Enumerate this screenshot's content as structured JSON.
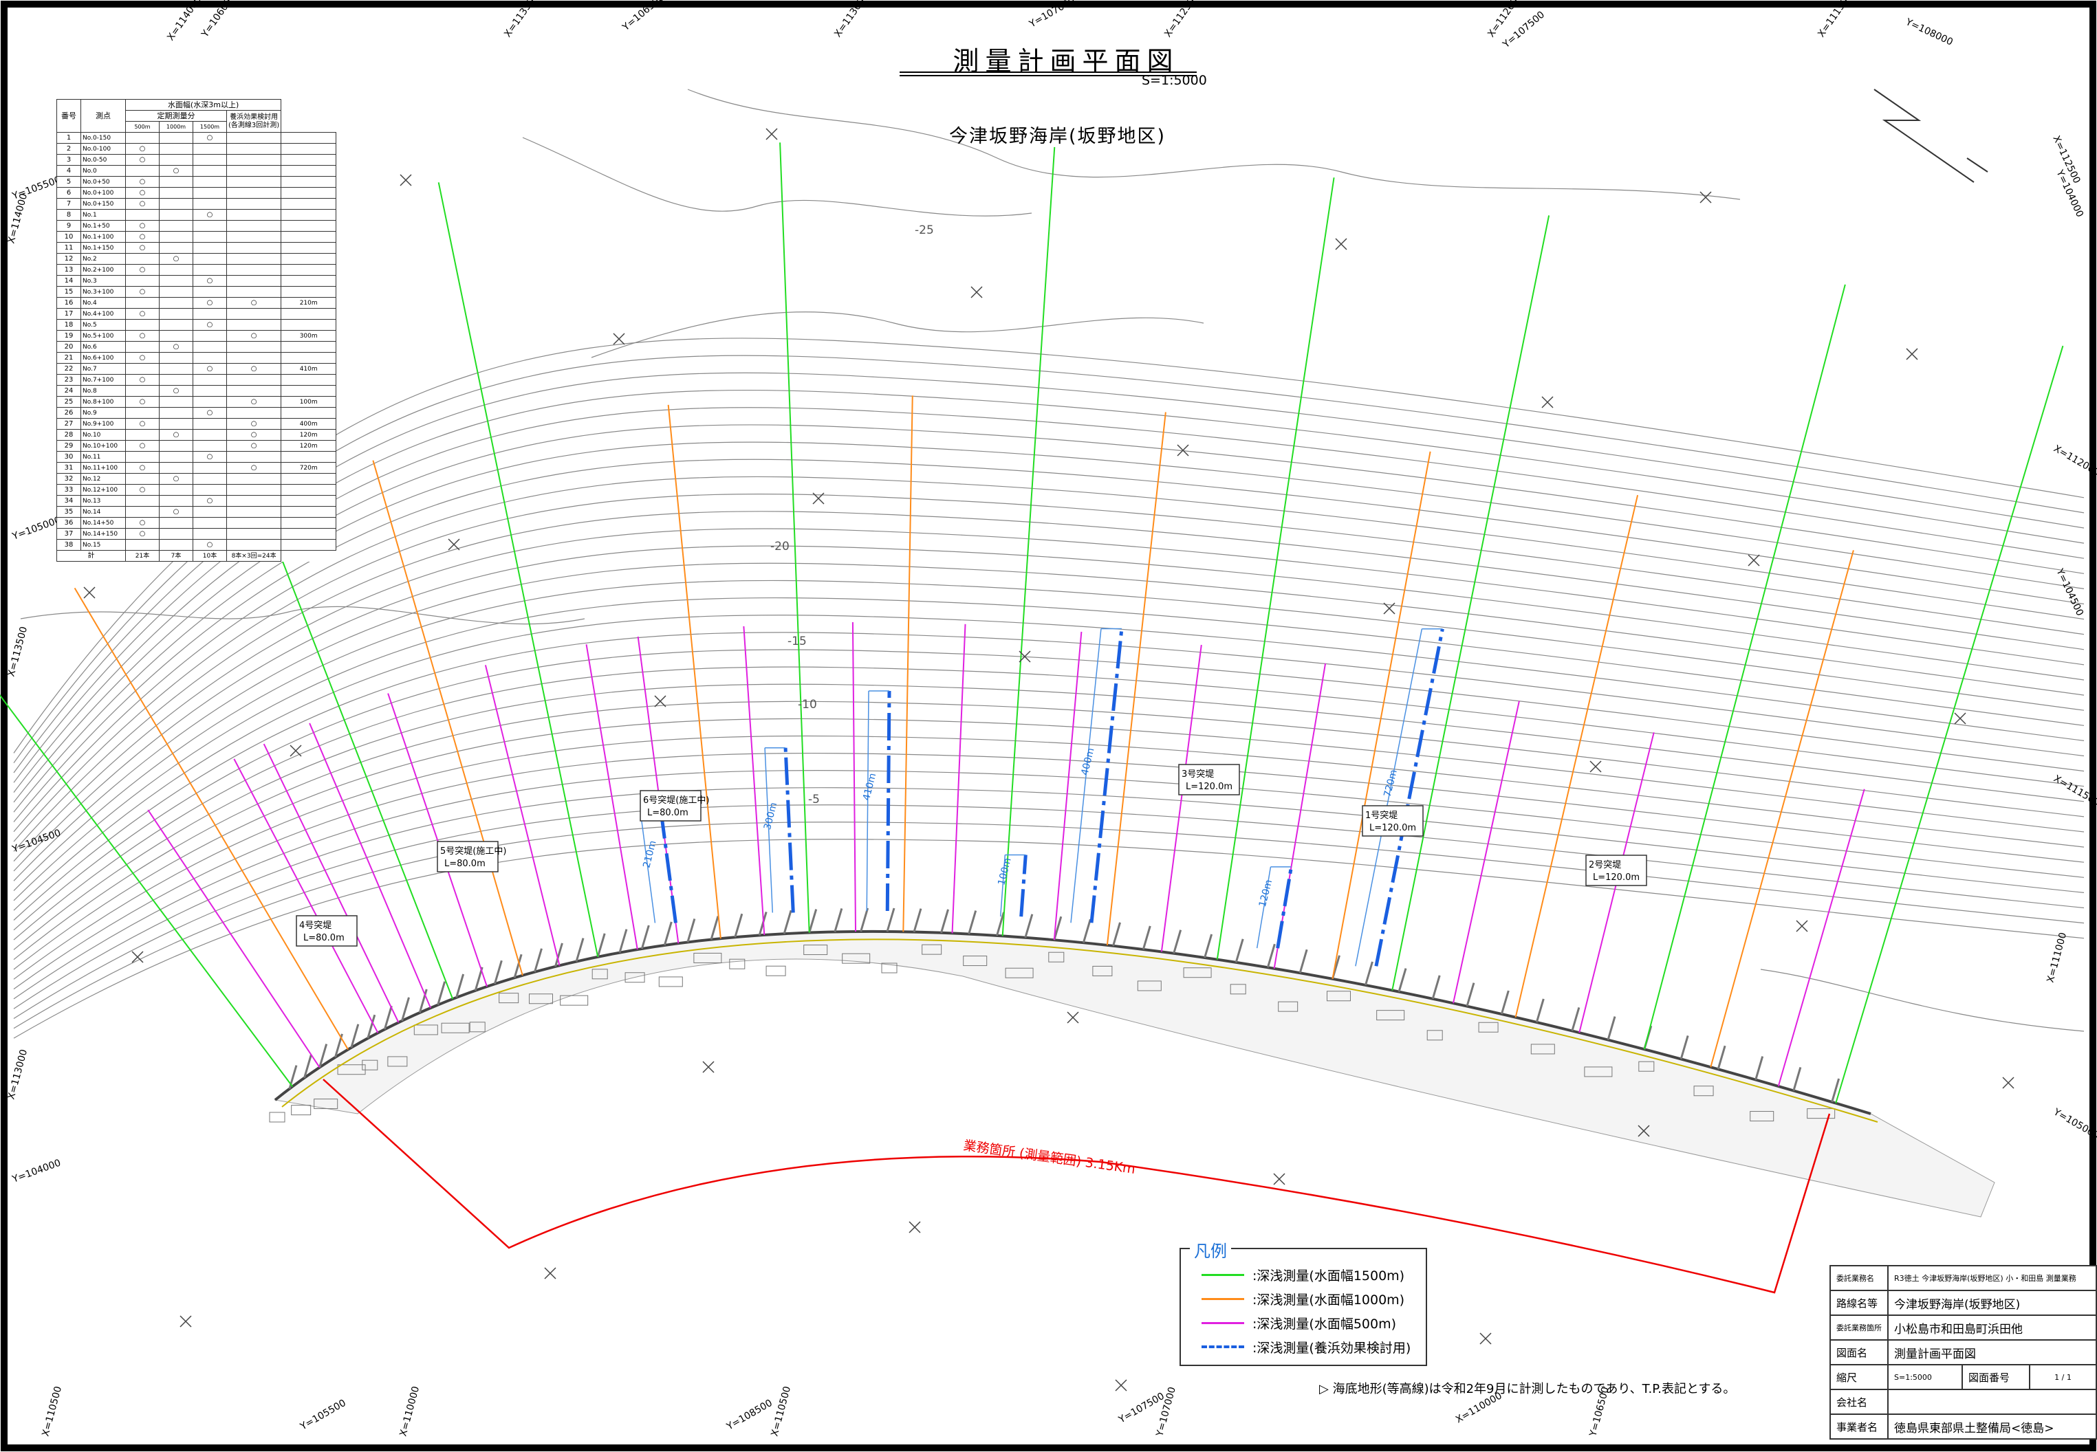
{
  "title": "測量計画平面図",
  "scale_note": "S=1:5000",
  "subtitle": "今津坂野海岸(坂野地区)",
  "grid_labels": [
    "X=114000",
    "Y=106000",
    "X=113500",
    "Y=106500",
    "X=113000",
    "Y=107000",
    "X=112500",
    "X=112000",
    "Y=107500",
    "X=111500",
    "Y=108000",
    "Y=105500",
    "X=114000",
    "Y=105000",
    "X=113500",
    "Y=104500",
    "X=113000",
    "Y=104000",
    "X=112500",
    "Y=104000",
    "X=112000",
    "Y=104500",
    "X=111500",
    "X=111000",
    "Y=105000",
    "X=110500",
    "Y=105500",
    "X=110000",
    "Y=108500",
    "X=110500",
    "Y=107500",
    "Y=107000",
    "X=110000",
    "Y=106500",
    "X=109500"
  ],
  "contour_labels": [
    "-25",
    "-20",
    "-15",
    "-10",
    "-5"
  ],
  "structures": [
    {
      "name": "6号突堤(施工中)",
      "length": "L=80.0m"
    },
    {
      "name": "5号突堤(施工中)",
      "length": "L=80.0m"
    },
    {
      "name": "4号突堤",
      "length": "L=80.0m"
    },
    {
      "name": "3号突堤",
      "length": "L=120.0m"
    },
    {
      "name": "1号突堤",
      "length": "L=120.0m"
    },
    {
      "name": "2号突堤",
      "length": "L=120.0m"
    }
  ],
  "blue_line_labels": [
    "210m",
    "300m",
    "410m",
    "100m",
    "400m",
    "120m",
    "720m"
  ],
  "work_area_label": "業務箇所 (測量範囲) 3.15Km",
  "table": {
    "col_no": "番号",
    "col_point": "測点",
    "group_header": "水面幅(水深3m以上)",
    "sub_header_regular": "定期測量分",
    "sub_header_effect": "養浜効果検討用",
    "sub_header_effect_note": "(各測線3回計測)",
    "width_cols": [
      "500m",
      "1000m",
      "1500m"
    ],
    "circle": "○",
    "rows": [
      {
        "no": "1",
        "pt": "No.0-150",
        "c": [
          0,
          0,
          1,
          0
        ],
        "len": ""
      },
      {
        "no": "2",
        "pt": "No.0-100",
        "c": [
          1,
          0,
          0,
          0
        ],
        "len": ""
      },
      {
        "no": "3",
        "pt": "No.0-50",
        "c": [
          1,
          0,
          0,
          0
        ],
        "len": ""
      },
      {
        "no": "4",
        "pt": "No.0",
        "c": [
          0,
          1,
          0,
          0
        ],
        "len": ""
      },
      {
        "no": "5",
        "pt": "No.0+50",
        "c": [
          1,
          0,
          0,
          0
        ],
        "len": ""
      },
      {
        "no": "6",
        "pt": "No.0+100",
        "c": [
          1,
          0,
          0,
          0
        ],
        "len": ""
      },
      {
        "no": "7",
        "pt": "No.0+150",
        "c": [
          1,
          0,
          0,
          0
        ],
        "len": ""
      },
      {
        "no": "8",
        "pt": "No.1",
        "c": [
          0,
          0,
          1,
          0
        ],
        "len": ""
      },
      {
        "no": "9",
        "pt": "No.1+50",
        "c": [
          1,
          0,
          0,
          0
        ],
        "len": ""
      },
      {
        "no": "10",
        "pt": "No.1+100",
        "c": [
          1,
          0,
          0,
          0
        ],
        "len": ""
      },
      {
        "no": "11",
        "pt": "No.1+150",
        "c": [
          1,
          0,
          0,
          0
        ],
        "len": ""
      },
      {
        "no": "12",
        "pt": "No.2",
        "c": [
          0,
          1,
          0,
          0
        ],
        "len": ""
      },
      {
        "no": "13",
        "pt": "No.2+100",
        "c": [
          1,
          0,
          0,
          0
        ],
        "len": ""
      },
      {
        "no": "14",
        "pt": "No.3",
        "c": [
          0,
          0,
          1,
          0
        ],
        "len": ""
      },
      {
        "no": "15",
        "pt": "No.3+100",
        "c": [
          1,
          0,
          0,
          0
        ],
        "len": ""
      },
      {
        "no": "16",
        "pt": "No.4",
        "c": [
          0,
          0,
          1,
          1
        ],
        "len": "210m"
      },
      {
        "no": "17",
        "pt": "No.4+100",
        "c": [
          1,
          0,
          0,
          0
        ],
        "len": ""
      },
      {
        "no": "18",
        "pt": "No.5",
        "c": [
          0,
          0,
          1,
          0
        ],
        "len": ""
      },
      {
        "no": "19",
        "pt": "No.5+100",
        "c": [
          1,
          0,
          0,
          1
        ],
        "len": "300m"
      },
      {
        "no": "20",
        "pt": "No.6",
        "c": [
          0,
          1,
          0,
          0
        ],
        "len": ""
      },
      {
        "no": "21",
        "pt": "No.6+100",
        "c": [
          1,
          0,
          0,
          0
        ],
        "len": ""
      },
      {
        "no": "22",
        "pt": "No.7",
        "c": [
          0,
          0,
          1,
          1
        ],
        "len": "410m"
      },
      {
        "no": "23",
        "pt": "No.7+100",
        "c": [
          1,
          0,
          0,
          0
        ],
        "len": ""
      },
      {
        "no": "24",
        "pt": "No.8",
        "c": [
          0,
          1,
          0,
          0
        ],
        "len": ""
      },
      {
        "no": "25",
        "pt": "No.8+100",
        "c": [
          1,
          0,
          0,
          1
        ],
        "len": "100m"
      },
      {
        "no": "26",
        "pt": "No.9",
        "c": [
          0,
          0,
          1,
          0
        ],
        "len": ""
      },
      {
        "no": "27",
        "pt": "No.9+100",
        "c": [
          1,
          0,
          0,
          1
        ],
        "len": "400m"
      },
      {
        "no": "28",
        "pt": "No.10",
        "c": [
          0,
          1,
          0,
          1
        ],
        "len": "120m"
      },
      {
        "no": "29",
        "pt": "No.10+100",
        "c": [
          1,
          0,
          0,
          1
        ],
        "len": "120m"
      },
      {
        "no": "30",
        "pt": "No.11",
        "c": [
          0,
          0,
          1,
          0
        ],
        "len": ""
      },
      {
        "no": "31",
        "pt": "No.11+100",
        "c": [
          1,
          0,
          0,
          1
        ],
        "len": "720m"
      },
      {
        "no": "32",
        "pt": "No.12",
        "c": [
          0,
          1,
          0,
          0
        ],
        "len": ""
      },
      {
        "no": "33",
        "pt": "No.12+100",
        "c": [
          1,
          0,
          0,
          0
        ],
        "len": ""
      },
      {
        "no": "34",
        "pt": "No.13",
        "c": [
          0,
          0,
          1,
          0
        ],
        "len": ""
      },
      {
        "no": "35",
        "pt": "No.14",
        "c": [
          0,
          1,
          0,
          0
        ],
        "len": ""
      },
      {
        "no": "36",
        "pt": "No.14+50",
        "c": [
          1,
          0,
          0,
          0
        ],
        "len": ""
      },
      {
        "no": "37",
        "pt": "No.14+150",
        "c": [
          1,
          0,
          0,
          0
        ],
        "len": ""
      },
      {
        "no": "38",
        "pt": "No.15",
        "c": [
          0,
          0,
          1,
          0
        ],
        "len": ""
      }
    ],
    "total_label": "計",
    "totals": [
      "21本",
      "7本",
      "10本",
      "8本×3回=24本"
    ]
  },
  "legend": {
    "title": "凡例",
    "items": [
      {
        "label": ":深浅測量(水面幅1500m)",
        "color": "#22dd22",
        "style": "solid"
      },
      {
        "label": ":深浅測量(水面幅1000m)",
        "color": "#ff8c1a",
        "style": "solid"
      },
      {
        "label": ":深浅測量(水面幅500m)",
        "color": "#e020e0",
        "style": "solid"
      },
      {
        "label": ":深浅測量(養浜効果検討用)",
        "color": "#1a5fe0",
        "style": "dashed"
      }
    ]
  },
  "note": "▷ 海底地形(等高線)は令和2年9月に計測したものであり、T.P.表記とする。",
  "title_block": {
    "rows": [
      {
        "k": "委託業務名",
        "v": "R3徳土 今津坂野海岸(坂野地区) 小・和田島 測量業務",
        "small": true
      },
      {
        "k": "路線名等",
        "v": "今津坂野海岸(坂野地区)"
      },
      {
        "k": "委託業務箇所",
        "v": "小松島市和田島町浜田他"
      },
      {
        "k": "図面名",
        "v": "測量計画平面図"
      },
      {
        "k": "縮尺",
        "v": "S=1:5000",
        "k2": "図面番号",
        "v2": "1 / 1"
      },
      {
        "k": "会社名",
        "v": ""
      },
      {
        "k": "事業者名",
        "v": "徳島県東部県土整備局<徳島>"
      }
    ]
  },
  "colors": {
    "green": "#22dd22",
    "orange": "#ff8c1a",
    "magenta": "#e020e0",
    "blue": "#1a5fe0",
    "red": "#ee0000"
  }
}
